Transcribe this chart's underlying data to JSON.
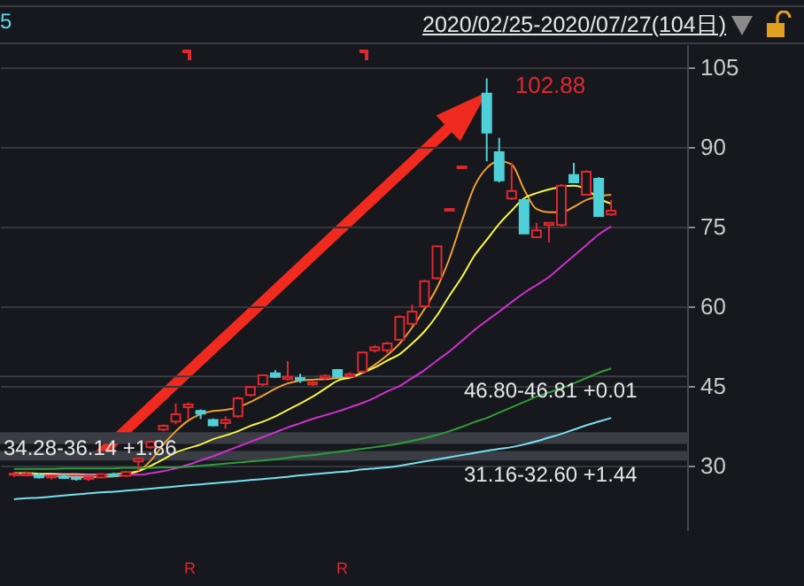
{
  "chart_data": {
    "type": "candlestick",
    "title": "2020/02/25-2020/07/27(104日)",
    "categories": [
      null,
      null,
      null,
      null,
      null,
      null,
      null,
      null,
      null,
      null,
      null,
      null,
      null,
      null,
      null,
      null,
      null,
      null,
      null,
      null,
      null,
      null,
      null,
      null,
      null,
      null,
      null,
      null,
      null,
      null,
      null,
      null,
      null,
      null,
      null,
      null,
      null,
      null,
      null,
      null,
      null,
      null,
      null,
      null,
      null,
      null,
      null,
      null,
      null
    ],
    "ohlc": [
      [
        28.3,
        28.8,
        27.9,
        28.5
      ],
      [
        28.5,
        28.9,
        28.0,
        28.2
      ],
      [
        28.2,
        28.6,
        27.6,
        27.8
      ],
      [
        27.8,
        28.3,
        27.4,
        28.0
      ],
      [
        28.0,
        28.4,
        27.5,
        27.7
      ],
      [
        27.7,
        28.1,
        27.2,
        27.5
      ],
      [
        27.5,
        28.0,
        27.1,
        27.8
      ],
      [
        27.8,
        28.6,
        27.6,
        28.4
      ],
      [
        28.4,
        28.7,
        27.9,
        28.1
      ],
      [
        28.1,
        29.0,
        27.9,
        28.8
      ],
      [
        30.8,
        31.5,
        29.0,
        31.3
      ],
      [
        33.5,
        34.8,
        33.2,
        34.5
      ],
      [
        36.8,
        37.8,
        36.5,
        37.5
      ],
      [
        38.3,
        41.7,
        37.8,
        39.7
      ],
      [
        41.0,
        41.9,
        38.8,
        41.5
      ],
      [
        40.3,
        40.6,
        38.8,
        39.8
      ],
      [
        38.6,
        38.9,
        37.4,
        37.6
      ],
      [
        38.0,
        39.3,
        37.0,
        38.6
      ],
      [
        39.3,
        43.0,
        39.0,
        42.7
      ],
      [
        43.3,
        45.0,
        43.0,
        44.8
      ],
      [
        45.3,
        47.2,
        45.0,
        47.0
      ],
      [
        47.4,
        48.0,
        46.5,
        46.7
      ],
      [
        46.3,
        49.7,
        46.0,
        46.7
      ],
      [
        46.5,
        47.3,
        45.6,
        46.2
      ],
      [
        45.3,
        46.0,
        45.0,
        45.7
      ],
      [
        46.5,
        47.2,
        46.2,
        46.9
      ],
      [
        48.0,
        48.2,
        46.5,
        46.7
      ],
      [
        46.8,
        47.6,
        46.6,
        47.2
      ],
      [
        47.7,
        51.5,
        47.4,
        51.3
      ],
      [
        51.7,
        52.7,
        51.3,
        52.3
      ],
      [
        51.7,
        53.3,
        51.2,
        53.0
      ],
      [
        53.7,
        58.3,
        53.5,
        58.0
      ],
      [
        56.7,
        60.3,
        56.3,
        59.0
      ],
      [
        60.0,
        65.0,
        59.7,
        64.7
      ],
      [
        65.3,
        71.5,
        65.0,
        71.3
      ],
      [
        78.0,
        78.3,
        77.9,
        78.3
      ],
      [
        86.0,
        86.3,
        85.9,
        86.3
      ],
      null,
      [
        100.0,
        102.88,
        87.3,
        92.7
      ],
      [
        89.0,
        91.7,
        83.3,
        83.7
      ],
      [
        80.3,
        87.0,
        80.0,
        81.7
      ],
      [
        80.0,
        80.3,
        73.7,
        73.7
      ],
      [
        73.0,
        75.7,
        72.8,
        74.3
      ],
      [
        75.3,
        75.8,
        72.0,
        75.7
      ],
      [
        75.3,
        83.0,
        75.0,
        82.7
      ],
      [
        84.7,
        87.0,
        83.3,
        83.3
      ],
      [
        81.0,
        85.6,
        80.8,
        85.3
      ],
      [
        84.0,
        84.3,
        77.0,
        77.0
      ],
      [
        77.3,
        80.0,
        77.0,
        78.0
      ]
    ],
    "colors": [
      "#e0282e",
      "#e0282e",
      "#4fd0d8",
      "#e0282e",
      "#4fd0d8",
      "#4fd0d8",
      "#e0282e",
      "#e0282e",
      "#4fd0d8",
      "#e0282e",
      "#e0282e",
      "#e0282e",
      "#e0282e",
      "#e0282e",
      "#e0282e",
      "#4fd0d8",
      "#4fd0d8",
      "#e0282e",
      "#e0282e",
      "#e0282e",
      "#e0282e",
      "#4fd0d8",
      "#e0282e",
      "#4fd0d8",
      "#e0282e",
      "#e0282e",
      "#4fd0d8",
      "#e0282e",
      "#e0282e",
      "#e0282e",
      "#e0282e",
      "#e0282e",
      "#e0282e",
      "#e0282e",
      "#e0282e",
      "#e0282e",
      "#e0282e",
      null,
      "#4fd0d8",
      "#4fd0d8",
      "#e0282e",
      "#4fd0d8",
      "#e0282e",
      "#e0282e",
      "#e0282e",
      "#4fd0d8",
      "#e0282e",
      "#4fd0d8",
      "#e0282e"
    ],
    "series": [
      {
        "type": "line",
        "color": "#f0a030",
        "values": [
          28.3,
          28.3,
          28.2,
          28.1,
          28.0,
          27.9,
          27.8,
          27.9,
          28.0,
          28.3,
          29.0,
          31.0,
          34.0,
          36.5,
          38.5,
          39.7,
          40.3,
          40.5,
          41.0,
          42.0,
          43.2,
          44.5,
          45.5,
          46.0,
          46.2,
          46.3,
          46.5,
          46.6,
          47.5,
          49.0,
          50.8,
          53.0,
          56.0,
          59.5,
          63.5,
          69.0,
          76.0,
          82.5,
          86.0,
          87.3,
          86.7,
          82.0,
          78.3,
          77.7,
          77.7,
          78.7,
          80.0,
          80.7,
          81.0
        ]
      },
      {
        "type": "line",
        "color": "#f5f542",
        "values": [
          28.6,
          28.6,
          28.5,
          28.5,
          28.4,
          28.4,
          28.3,
          28.3,
          28.4,
          28.6,
          29.0,
          30.0,
          31.2,
          32.5,
          33.3,
          34.0,
          35.0,
          35.7,
          36.5,
          37.5,
          38.3,
          39.3,
          40.5,
          41.7,
          43.0,
          44.5,
          46.0,
          46.6,
          47.5,
          48.5,
          49.8,
          51.0,
          53.0,
          55.3,
          58.3,
          62.0,
          65.5,
          69.5,
          72.5,
          75.5,
          78.0,
          80.3,
          81.3,
          82.0,
          82.5,
          82.7,
          82.0,
          80.3,
          79.3
        ]
      },
      {
        "type": "line",
        "color": "#d030d0",
        "values": [
          28.3,
          28.3,
          28.2,
          28.2,
          28.2,
          28.2,
          28.2,
          28.2,
          28.3,
          28.3,
          28.3,
          28.6,
          29.0,
          29.5,
          30.2,
          31.0,
          31.8,
          32.7,
          33.6,
          34.5,
          35.4,
          36.3,
          37.2,
          38.0,
          38.8,
          39.5,
          40.2,
          41.0,
          41.8,
          42.8,
          44.0,
          45.0,
          46.5,
          48.0,
          49.8,
          51.5,
          53.5,
          55.5,
          57.3,
          59.0,
          60.8,
          62.5,
          64.0,
          65.5,
          67.5,
          69.5,
          71.5,
          73.5,
          75.0
        ]
      },
      {
        "type": "line",
        "color": "#2e9e3a",
        "values": [
          29.4,
          29.4,
          29.4,
          29.4,
          29.5,
          29.5,
          29.5,
          29.5,
          29.5,
          29.6,
          29.6,
          29.6,
          29.7,
          29.7,
          29.8,
          30.0,
          30.2,
          30.4,
          30.6,
          30.8,
          31.0,
          31.2,
          31.5,
          31.8,
          32.0,
          32.3,
          32.6,
          32.9,
          33.2,
          33.5,
          33.8,
          34.2,
          34.7,
          35.2,
          35.8,
          36.5,
          37.3,
          38.2,
          39.0,
          40.0,
          41.0,
          42.0,
          43.0,
          43.8,
          44.6,
          45.5,
          46.5,
          47.5,
          48.3
        ]
      },
      {
        "type": "line",
        "color": "#78e0f0",
        "values": [
          23.7,
          23.9,
          24.0,
          24.2,
          24.4,
          24.6,
          24.8,
          25.0,
          25.1,
          25.3,
          25.5,
          25.7,
          25.9,
          26.1,
          26.3,
          26.5,
          26.7,
          26.9,
          27.1,
          27.3,
          27.5,
          27.7,
          27.9,
          28.2,
          28.4,
          28.6,
          28.8,
          29.0,
          29.3,
          29.5,
          29.7,
          30.0,
          30.4,
          30.8,
          31.2,
          31.6,
          32.0,
          32.4,
          32.8,
          33.2,
          33.5,
          34.0,
          34.6,
          35.3,
          36.0,
          36.8,
          37.6,
          38.3,
          39.0
        ]
      }
    ],
    "bands": [
      {
        "axis": "y",
        "from": 46.8,
        "to": 46.81,
        "label": "46.80-46.81 +0.01",
        "color": "#3a3d44"
      },
      {
        "axis": "y",
        "from": 34.28,
        "to": 36.14,
        "label": "34.28-36.14 +1.86",
        "color": "#3a3d44"
      },
      {
        "axis": "y",
        "from": 31.16,
        "to": 32.6,
        "label": "31.16-32.60 +1.44",
        "color": "#3a3d44"
      }
    ],
    "annotations": [
      "5",
      "102.88",
      "R",
      "R"
    ],
    "ylim": [
      17.7,
      109.3
    ],
    "yticks": [
      30,
      45,
      60,
      75,
      90,
      105
    ],
    "grid": "y",
    "tick_labels": "y",
    "marker": "none"
  }
}
